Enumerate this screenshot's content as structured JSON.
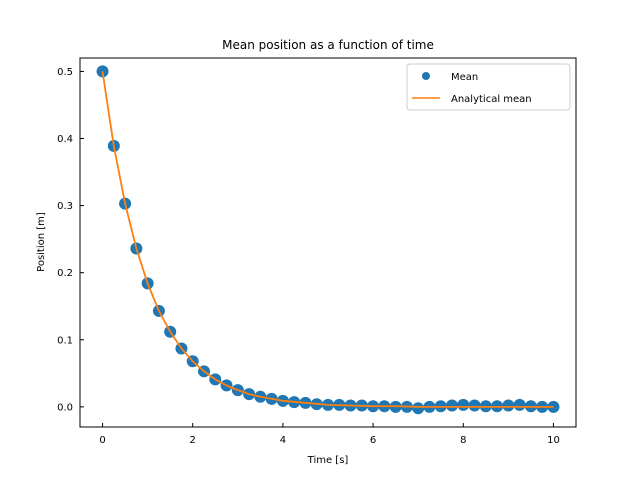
{
  "chart_data": {
    "type": "scatter",
    "title": "Mean position as a function of time",
    "xlabel": "Time [s]",
    "ylabel": "Position [m]",
    "xlim": [
      -0.5,
      10.5
    ],
    "ylim": [
      -0.03,
      0.52
    ],
    "xticks": [
      0,
      2,
      4,
      6,
      8,
      10
    ],
    "yticks": [
      0.0,
      0.1,
      0.2,
      0.3,
      0.4,
      0.5
    ],
    "xtick_labels": [
      "0",
      "2",
      "4",
      "6",
      "8",
      "10"
    ],
    "ytick_labels": [
      "0.0",
      "0.1",
      "0.2",
      "0.3",
      "0.4",
      "0.5"
    ],
    "grid": false,
    "legend_position": "top-right",
    "series": [
      {
        "name": "Mean",
        "kind": "scatter",
        "color": "#1f77b4",
        "x": [
          0,
          0.25,
          0.5,
          0.75,
          1,
          1.25,
          1.5,
          1.75,
          2,
          2.25,
          2.5,
          2.75,
          3,
          3.25,
          3.5,
          3.75,
          4,
          4.25,
          4.5,
          4.75,
          5,
          5.25,
          5.5,
          5.75,
          6,
          6.25,
          6.5,
          6.75,
          7,
          7.25,
          7.5,
          7.75,
          8,
          8.25,
          8.5,
          8.75,
          9,
          9.25,
          9.5,
          9.75,
          10
        ],
        "y": [
          0.5,
          0.389,
          0.303,
          0.236,
          0.184,
          0.143,
          0.112,
          0.087,
          0.068,
          0.053,
          0.041,
          0.032,
          0.025,
          0.019,
          0.015,
          0.012,
          0.009,
          0.007,
          0.006,
          0.004,
          0.003,
          0.003,
          0.002,
          0.002,
          0.001,
          0.001,
          0.0,
          0.0,
          -0.002,
          0.0,
          0.001,
          0.002,
          0.003,
          0.002,
          0.001,
          0.001,
          0.002,
          0.003,
          0.001,
          0.0,
          0.0
        ]
      },
      {
        "name": "Analytical mean",
        "kind": "line",
        "color": "#ff7f0e",
        "x": [
          0,
          0.25,
          0.5,
          0.75,
          1,
          1.25,
          1.5,
          1.75,
          2,
          2.25,
          2.5,
          2.75,
          3,
          3.25,
          3.5,
          3.75,
          4,
          4.5,
          5,
          5.5,
          6,
          6.5,
          7,
          7.5,
          8,
          8.5,
          9,
          9.5,
          10
        ],
        "y": [
          0.5,
          0.389,
          0.303,
          0.236,
          0.184,
          0.143,
          0.112,
          0.087,
          0.068,
          0.053,
          0.041,
          0.032,
          0.025,
          0.019,
          0.015,
          0.012,
          0.009,
          0.006,
          0.003,
          0.002,
          0.001,
          0.001,
          0.0,
          0.0,
          0.0,
          0.0,
          0.0,
          0.0,
          0.0
        ]
      }
    ]
  }
}
